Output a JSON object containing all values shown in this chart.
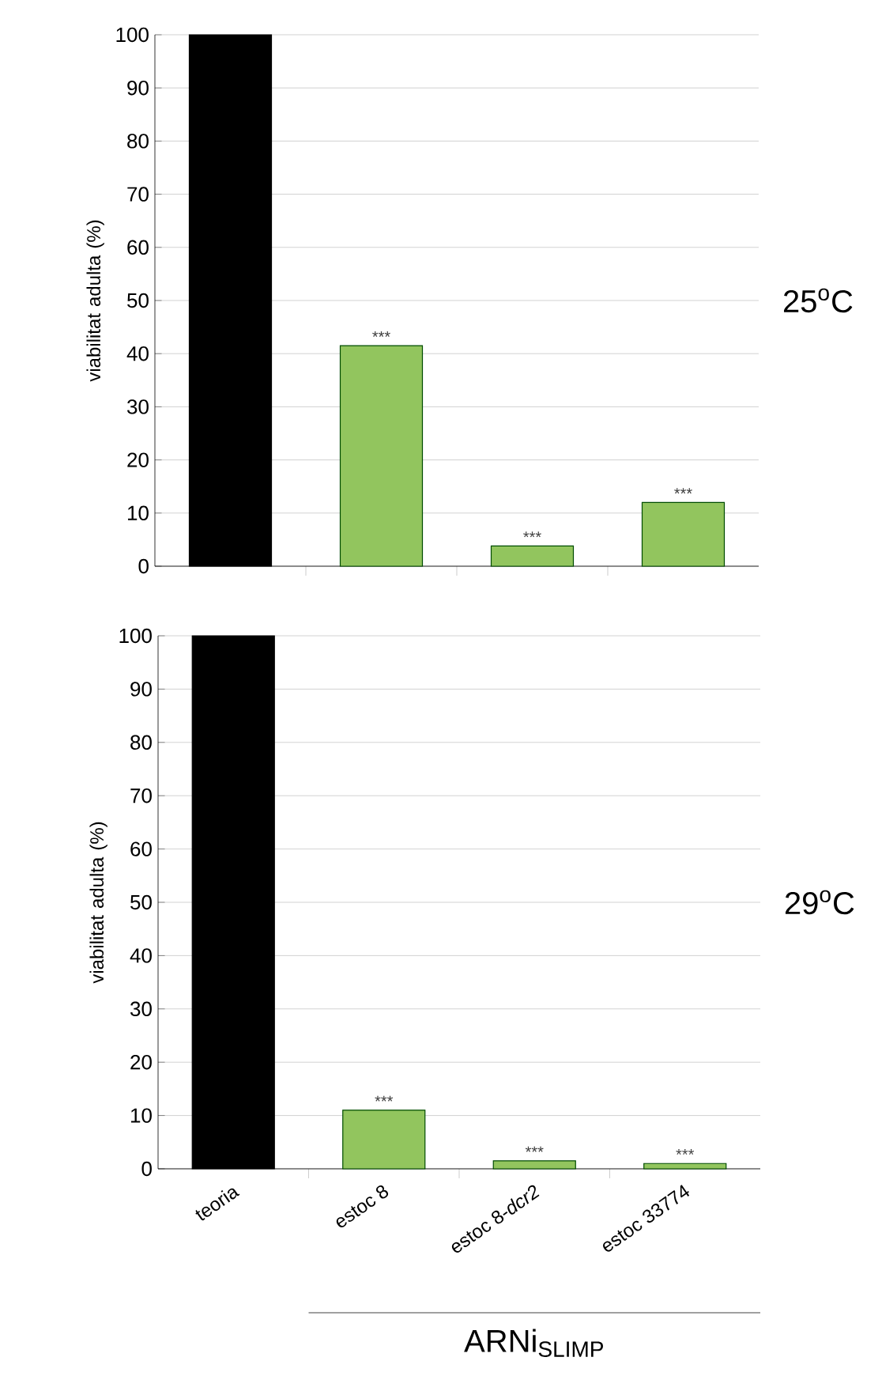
{
  "chart_data": [
    {
      "type": "bar",
      "ylabel": "viabilitat adulta (%)",
      "categories": [
        "teoria",
        "estoc 8",
        "estoc 8-*dcr2*",
        "estoc 33774"
      ],
      "values": [
        100,
        41.5,
        3.8,
        12
      ],
      "colors": [
        "#000000",
        "#92c55e",
        "#92c55e",
        "#92c55e"
      ],
      "ylim": [
        0,
        100
      ],
      "yticks": [
        0,
        10,
        20,
        30,
        40,
        50,
        60,
        70,
        80,
        90,
        100
      ],
      "grid": "y",
      "tick_labels": "y",
      "annotations": [
        "25$^{o}$C",
        {
          "text": "***",
          "x": "estoc 8",
          "y": 41.5
        },
        {
          "text": "***",
          "x": "estoc 8-*dcr2*",
          "y": 3.8
        },
        {
          "text": "***",
          "x": "estoc 33774",
          "y": 12
        }
      ]
    },
    {
      "type": "bar",
      "ylabel": "viabilitat adulta (%)",
      "categories": [
        "teoria",
        "estoc 8",
        "estoc 8-*dcr2*",
        "estoc 33774"
      ],
      "values": [
        100,
        11,
        1.5,
        1
      ],
      "colors": [
        "#000000",
        "#92c55e",
        "#92c55e",
        "#92c55e"
      ],
      "ylim": [
        0,
        100
      ],
      "yticks": [
        0,
        10,
        20,
        30,
        40,
        50,
        60,
        70,
        80,
        90,
        100
      ],
      "grid": "y",
      "annotations": [
        "29$^{o}$C",
        "ARNi$_{SLIMP}$",
        {
          "text": "***",
          "x": "estoc 8",
          "y": 11
        },
        {
          "text": "***",
          "x": "estoc 8-*dcr2*",
          "y": 1.5
        },
        {
          "text": "***",
          "x": "estoc 33774",
          "y": 1
        }
      ]
    }
  ]
}
